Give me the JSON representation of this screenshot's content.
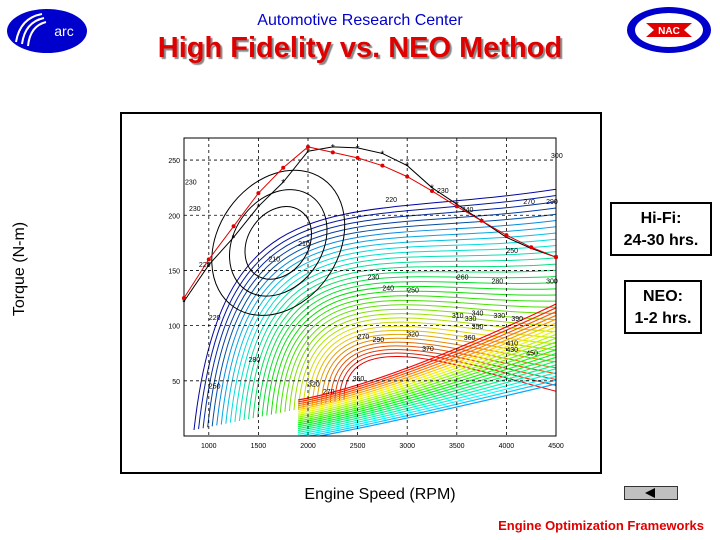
{
  "header": {
    "organization": "Automotive Research Center",
    "title": "High Fidelity vs. NEO Method",
    "left_logo_text": "arc",
    "right_logo_text": "NAC"
  },
  "notes": {
    "hifi_line1": "Hi-Fi:",
    "hifi_line2": "24-30 hrs.",
    "neo_line1": "NEO:",
    "neo_line2": "1-2 hrs."
  },
  "footer": {
    "text": "Engine Optimization Frameworks"
  },
  "colors": {
    "title": "#e00000",
    "organization": "#0000cc",
    "neo_curve": "#e00000",
    "hifi_curve": "#000000"
  },
  "chart_data": {
    "type": "line",
    "xlabel": "Engine Speed (RPM)",
    "ylabel": "Torque (N-m)",
    "xlim": [
      750,
      4500
    ],
    "ylim": [
      0,
      270
    ],
    "x_ticks": [
      "1000",
      "1500",
      "2000",
      "2500",
      "3000",
      "3500",
      "4000",
      "4500"
    ],
    "y_ticks": [
      "50",
      "100",
      "150",
      "200",
      "250"
    ],
    "grid": true,
    "series": [
      {
        "style": "red line with dots",
        "x": [
          750,
          1000,
          1250,
          1500,
          1750,
          2000,
          2250,
          2500,
          2750,
          3000,
          3250,
          3500,
          3750,
          4000,
          4250,
          4500
        ],
        "y": [
          125,
          160,
          190,
          220,
          243,
          262,
          257,
          252,
          245,
          235,
          222,
          208,
          195,
          182,
          171,
          162
        ]
      },
      {
        "style": "black line with asterisks",
        "x": [
          750,
          1000,
          1250,
          1500,
          1750,
          2000,
          2250,
          2500,
          2750,
          3000,
          3250,
          3500,
          3750,
          4000,
          4250,
          4500
        ],
        "y": [
          122,
          155,
          180,
          208,
          230,
          258,
          262,
          261,
          256,
          245,
          225,
          210,
          195,
          180,
          170,
          162
        ]
      }
    ],
    "contour_labels": [
      {
        "text": "300",
        "x": 4450,
        "y": 252
      },
      {
        "text": "290",
        "x": 4400,
        "y": 210
      },
      {
        "text": "270",
        "x": 4170,
        "y": 210
      },
      {
        "text": "250",
        "x": 4000,
        "y": 166
      },
      {
        "text": "240",
        "x": 3550,
        "y": 203
      },
      {
        "text": "230",
        "x": 3300,
        "y": 220
      },
      {
        "text": "220",
        "x": 2780,
        "y": 212
      },
      {
        "text": "210",
        "x": 1900,
        "y": 172
      },
      {
        "text": "210",
        "x": 1600,
        "y": 158
      },
      {
        "text": "230",
        "x": 760,
        "y": 228
      },
      {
        "text": "230",
        "x": 800,
        "y": 204
      },
      {
        "text": "220",
        "x": 900,
        "y": 153
      },
      {
        "text": "220",
        "x": 1000,
        "y": 105
      },
      {
        "text": "230",
        "x": 2600,
        "y": 142
      },
      {
        "text": "240",
        "x": 2750,
        "y": 132
      },
      {
        "text": "250",
        "x": 3000,
        "y": 130
      },
      {
        "text": "260",
        "x": 3500,
        "y": 142
      },
      {
        "text": "280",
        "x": 3850,
        "y": 138
      },
      {
        "text": "300",
        "x": 4400,
        "y": 138
      },
      {
        "text": "310",
        "x": 3450,
        "y": 107
      },
      {
        "text": "330",
        "x": 3580,
        "y": 104
      },
      {
        "text": "340",
        "x": 3650,
        "y": 109
      },
      {
        "text": "350",
        "x": 3650,
        "y": 97
      },
      {
        "text": "360",
        "x": 3570,
        "y": 87
      },
      {
        "text": "330",
        "x": 3870,
        "y": 107
      },
      {
        "text": "390",
        "x": 4050,
        "y": 104
      },
      {
        "text": "320",
        "x": 3000,
        "y": 90
      },
      {
        "text": "370",
        "x": 3150,
        "y": 77
      },
      {
        "text": "270",
        "x": 2500,
        "y": 88
      },
      {
        "text": "290",
        "x": 2650,
        "y": 85
      },
      {
        "text": "280",
        "x": 1400,
        "y": 67
      },
      {
        "text": "250",
        "x": 1000,
        "y": 43
      },
      {
        "text": "320",
        "x": 2000,
        "y": 45
      },
      {
        "text": "270",
        "x": 2150,
        "y": 38
      },
      {
        "text": "350",
        "x": 2450,
        "y": 50
      },
      {
        "text": "410",
        "x": 4000,
        "y": 82
      },
      {
        "text": "430",
        "x": 4000,
        "y": 76
      },
      {
        "text": "450",
        "x": 4200,
        "y": 73
      }
    ]
  }
}
